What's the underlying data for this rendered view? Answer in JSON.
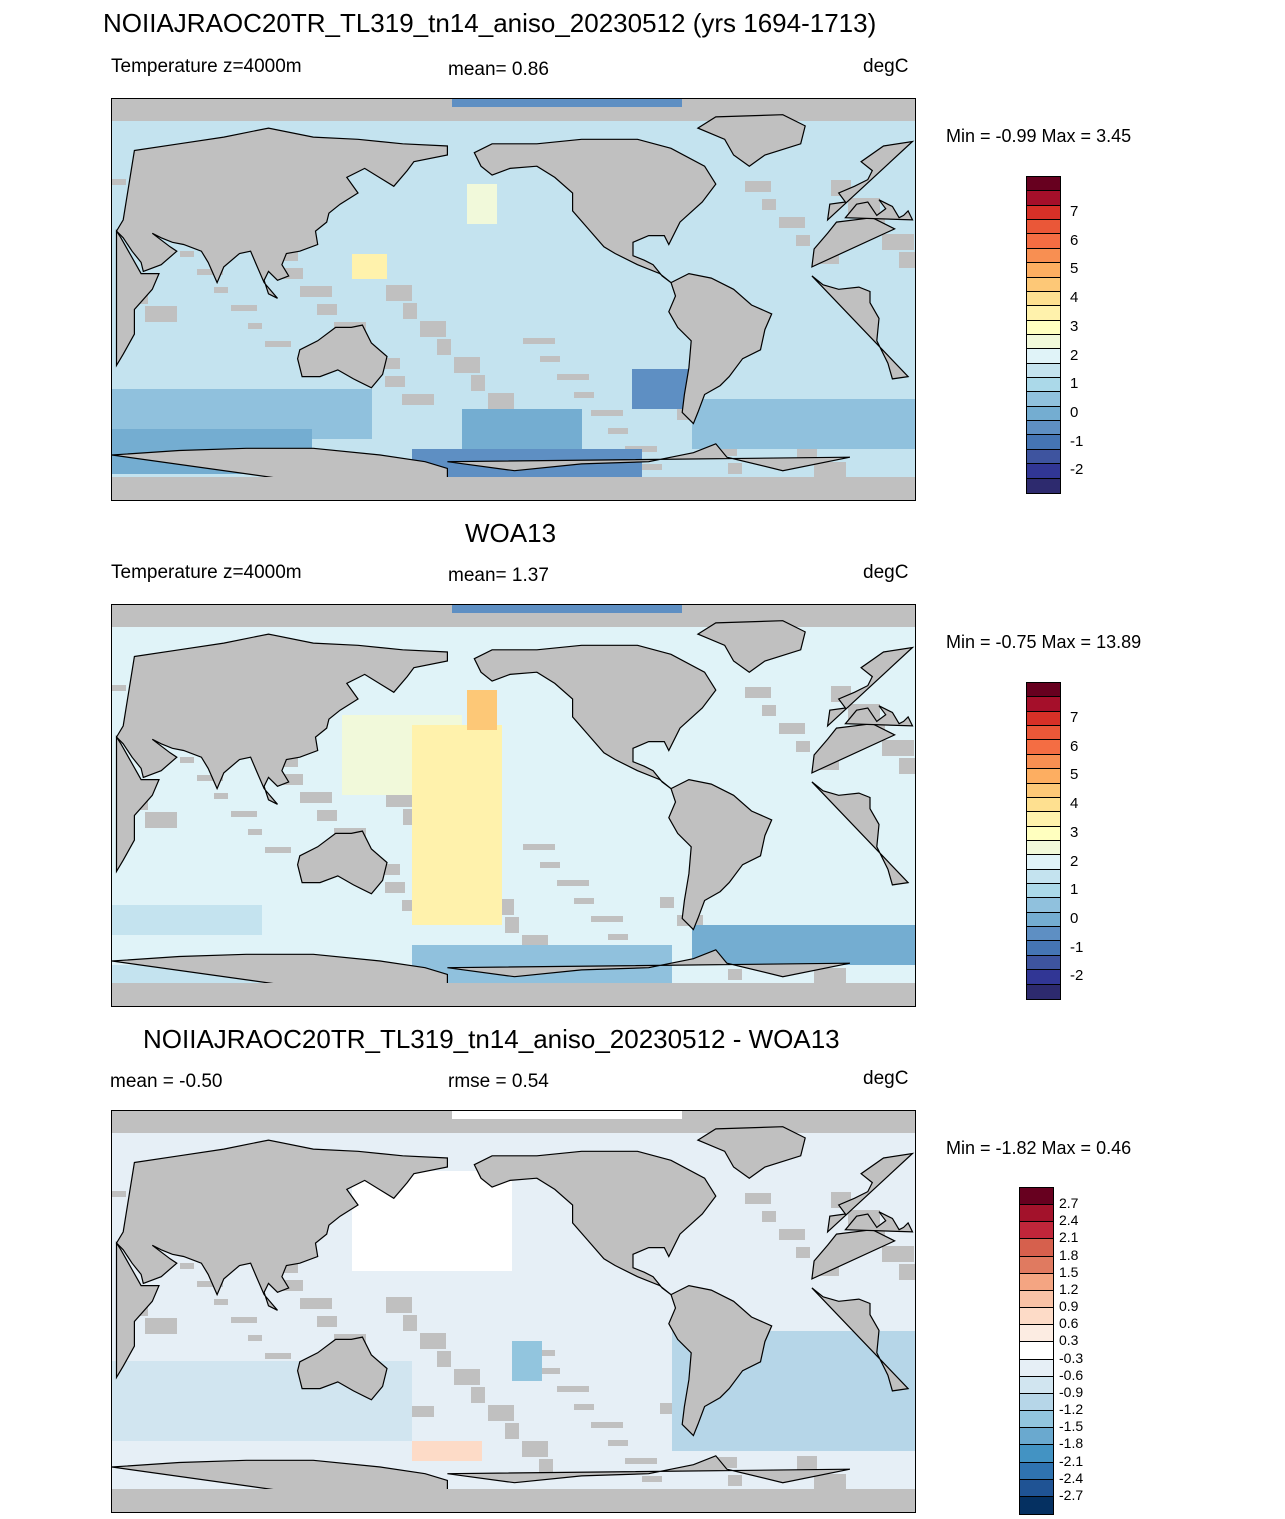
{
  "panels": [
    {
      "title": "NOIIAJRAOC20TR_TL319_tn14_aniso_20230512 (yrs 1694-1713)",
      "left": "Temperature z=4000m",
      "center": "mean=   0.86",
      "right": "degC",
      "minmax": "Min =  -0.99 Max =   3.45",
      "palette": "temp"
    },
    {
      "title": "WOA13",
      "left": "Temperature z=4000m",
      "center": "mean=   1.37",
      "right": "degC",
      "minmax": "Min =  -0.75 Max =  13.89",
      "palette": "temp"
    },
    {
      "title": "NOIIAJRAOC20TR_TL319_tn14_aniso_20230512 - WOA13",
      "left": "mean =  -0.50",
      "center": "rmse =   0.54",
      "right": "degC",
      "minmax": "Min =  -1.82 Max =   0.46",
      "palette": "diff"
    }
  ],
  "colorbars": {
    "temp": {
      "labels": [
        "7",
        "6",
        "5",
        "4",
        "3",
        "2",
        "1",
        "0",
        "-1",
        "-2"
      ],
      "colors": [
        "#67001f",
        "#a50f2a",
        "#d73027",
        "#ea5738",
        "#f46d43",
        "#f88f52",
        "#fdae61",
        "#fdc877",
        "#fee090",
        "#fff2ac",
        "#ffffbf",
        "#f1f9da",
        "#e0f3f8",
        "#c4e3ef",
        "#abd9e9",
        "#90c1dd",
        "#74add1",
        "#5e8fc3",
        "#4575b4",
        "#3e549f",
        "#313695",
        "#2d2a6e"
      ]
    },
    "diff": {
      "labels": [
        "2.7",
        "2.4",
        "2.1",
        "1.8",
        "1.5",
        "1.2",
        "0.9",
        "0.6",
        "0.3",
        "-0.3",
        "-0.6",
        "-0.9",
        "-1.2",
        "-1.5",
        "-1.8",
        "-2.1",
        "-2.4",
        "-2.7"
      ],
      "colors": [
        "#67001f",
        "#a3122b",
        "#c0263a",
        "#d6604d",
        "#e07a60",
        "#f4a582",
        "#f9c2a6",
        "#fddbc7",
        "#fcece2",
        "#ffffff",
        "#e6eff6",
        "#d1e5f0",
        "#b6d6e8",
        "#92c5de",
        "#6aa9cf",
        "#4393c3",
        "#2f73b0",
        "#1f5394",
        "#053061"
      ]
    }
  },
  "maps": [
    {
      "ocean_base": "#c4e3ef",
      "deep_patches": [
        "#90c1dd",
        "#74add1",
        "#5e8fc3"
      ],
      "warm_patches": [
        "#f1f9da",
        "#fff2ac"
      ]
    },
    {
      "ocean_base": "#e0f3f8",
      "deep_patches": [
        "#c4e3ef",
        "#90c1dd",
        "#74add1"
      ],
      "warm_patches": [
        "#f1f9da",
        "#fff2ac",
        "#fdc877"
      ]
    },
    {
      "ocean_base": "#e6eff6",
      "deep_patches": [
        "#d1e5f0",
        "#b6d6e8",
        "#ffffff"
      ],
      "warm_patches": [
        "#fddbc7",
        "#92c5de"
      ]
    }
  ]
}
